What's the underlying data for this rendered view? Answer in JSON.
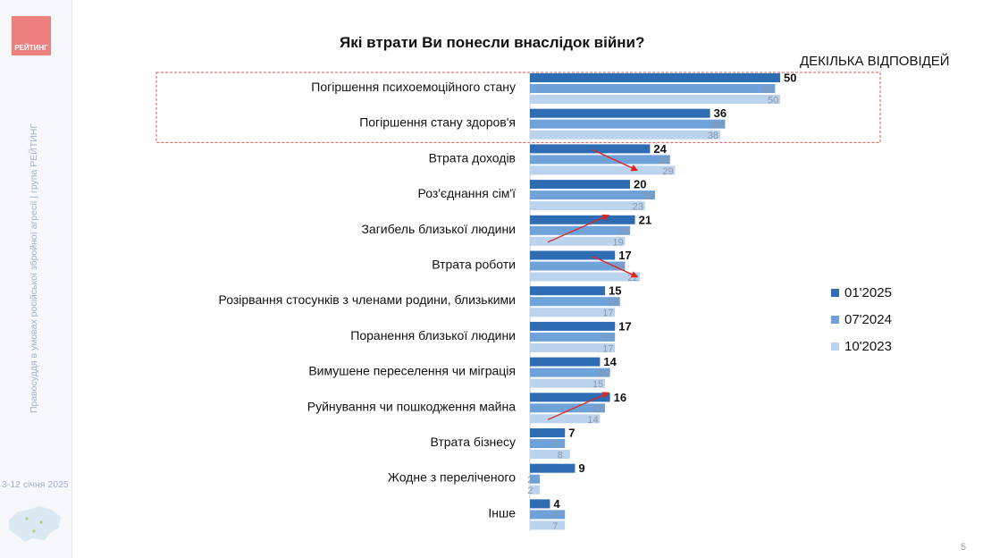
{
  "header": {
    "title": "Які втрати Ви понесли внаслідок війни?",
    "subtitle": "ДЕКІЛЬКА ВІДПОВІДЕЙ"
  },
  "sidebar": {
    "logo_text": "РЕЙТИНГ",
    "vertical_text": "Правосуддя в умовах російської збройної агресії | група РЕЙТИНГ",
    "date_text": "3-12 січня 2025"
  },
  "page_number": "5",
  "colors": {
    "series_2025": "#2e6db4",
    "series_2024": "#6ea2d8",
    "series_2023": "#bcd3ee",
    "highlight_border": "#d9534f",
    "arrow": "#e0241f"
  },
  "legend": {
    "position": "right",
    "items": [
      {
        "label": "01'2025",
        "color": "#2e6db4"
      },
      {
        "label": "07'2024",
        "color": "#6ea2d8"
      },
      {
        "label": "10'2023",
        "color": "#bcd3ee"
      }
    ]
  },
  "chart_data": {
    "type": "bar",
    "orientation": "horizontal",
    "title": "Які втрати Ви понесли внаслідок війни?",
    "subtitle": "ДЕКІЛЬКА ВІДПОВІДЕЙ",
    "categories": [
      "Погіршення психоемоційного стану",
      "Погіршення стану здоров'я",
      "Втрата доходів",
      "Роз'єднання сім'ї",
      "Загибель близької людини",
      "Втрата роботи",
      "Розірвання стосунків з членами родини, близькими",
      "Поранення близької людини",
      "Вимушене переселення чи міграція",
      "Руйнування чи пошкодження майна",
      "Втрата бізнесу",
      "Жодне з переліченого",
      "Інше"
    ],
    "series": [
      {
        "name": "01'2025",
        "values": [
          50,
          36,
          24,
          20,
          21,
          17,
          15,
          17,
          14,
          16,
          7,
          9,
          4
        ]
      },
      {
        "name": "07'2024",
        "values": [
          49,
          39,
          28,
          25,
          20,
          19,
          18,
          17,
          16,
          15,
          7,
          2,
          7
        ]
      },
      {
        "name": "10'2023",
        "values": [
          50,
          38,
          29,
          23,
          19,
          22,
          17,
          17,
          15,
          14,
          8,
          2,
          7
        ]
      }
    ],
    "highlighted_categories": [
      0,
      1
    ],
    "trend_arrows": [
      2,
      4,
      5,
      9
    ],
    "xlim": [
      0,
      50
    ],
    "grid": false
  }
}
